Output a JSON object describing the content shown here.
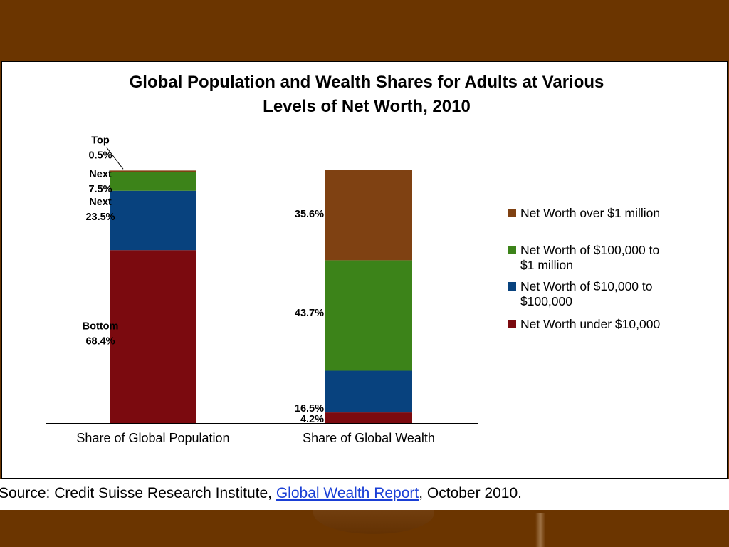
{
  "chart_data": {
    "type": "bar",
    "stacked": true,
    "percent": true,
    "title_lines": [
      "Global Population and Wealth Shares for Adults at Various",
      "Levels of Net Worth, 2010"
    ],
    "categories": [
      "Share of Global Population",
      "Share of Global Wealth"
    ],
    "ylim": [
      0,
      100
    ],
    "grid": false,
    "legend_position": "right",
    "series": [
      {
        "name": "Net Worth under $10,000",
        "color": "#7b0a0f",
        "values": [
          68.4,
          4.2
        ]
      },
      {
        "name": "Net Worth of $10,000 to $100,000",
        "color": "#08427e",
        "values": [
          23.5,
          16.5
        ]
      },
      {
        "name": "Net Worth of $100,000 to $1 million",
        "color": "#3c8319",
        "values": [
          7.5,
          43.7
        ]
      },
      {
        "name": "Net Worth over $1 million",
        "color": "#7f4112",
        "values": [
          0.5,
          35.6
        ]
      }
    ],
    "legend_order": [
      3,
      2,
      1,
      0
    ],
    "legend_lines": [
      [
        "Net Worth over $1 million"
      ],
      [
        "Net Worth of $100,000 to",
        "$1 million"
      ],
      [
        "Net Worth of $10,000 to",
        "$100,000"
      ],
      [
        "Net Worth under $10,000"
      ]
    ],
    "population_labels": [
      {
        "series": 3,
        "lines": [
          "Top",
          "0.5%"
        ]
      },
      {
        "series": 2,
        "lines": [
          "Next",
          "7.5%"
        ]
      },
      {
        "series": 1,
        "lines": [
          "Next",
          "23.5%"
        ]
      },
      {
        "series": 0,
        "lines": [
          "Bottom",
          "68.4%"
        ]
      }
    ],
    "wealth_labels": [
      {
        "series": 3,
        "text": "35.6%"
      },
      {
        "series": 2,
        "text": "43.7%"
      },
      {
        "series": 1,
        "text": "16.5%"
      },
      {
        "series": 0,
        "text": "4.2%"
      }
    ]
  },
  "source": {
    "prefix": "Source: Credit Suisse Research Institute, ",
    "link_text": "Global Wealth Report",
    "suffix": ", October 2010."
  },
  "theme": {
    "background": "#6b3500",
    "link_color": "#1a3fd6"
  }
}
